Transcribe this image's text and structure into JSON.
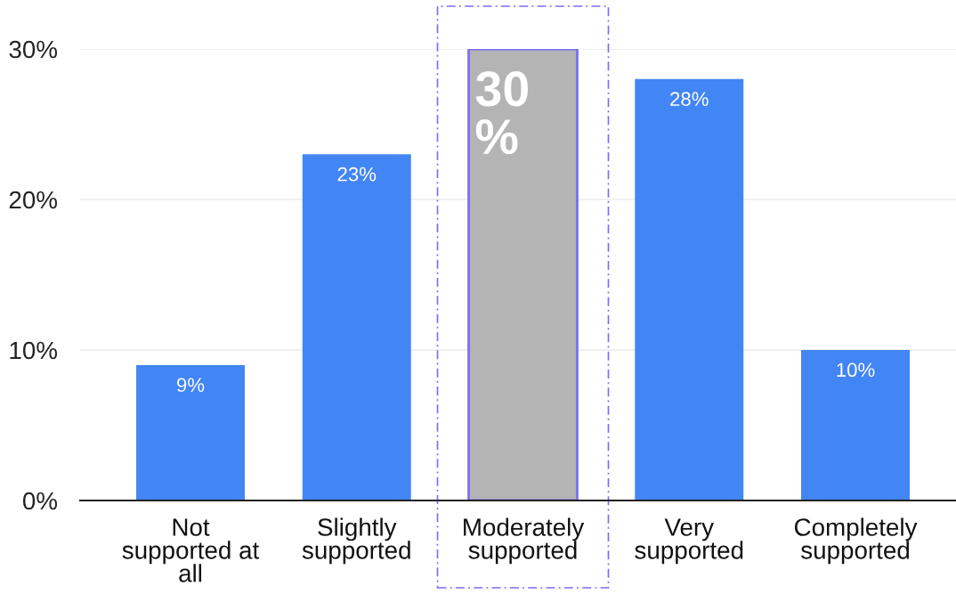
{
  "chart_data": {
    "type": "bar",
    "categories": [
      "Not\nsupported at\nall",
      "Slightly\nsupported",
      "Moderately\nsupported",
      "Very\nsupported",
      "Completely\nsupported"
    ],
    "values": [
      9,
      23,
      30,
      28,
      10
    ],
    "colors": [
      "#4285f4",
      "#4285f4",
      "#b4b4b4",
      "#4285f4",
      "#4285f4"
    ],
    "value_labels": [
      "9%",
      "23%",
      "30\n%",
      "28%",
      "10%"
    ],
    "ylim": [
      0,
      30
    ],
    "yticks": [
      {
        "value": 0,
        "label": "0%"
      },
      {
        "value": 10,
        "label": "10%"
      },
      {
        "value": 20,
        "label": "20%"
      },
      {
        "value": 30,
        "label": "30%"
      }
    ],
    "grid": "y"
  }
}
